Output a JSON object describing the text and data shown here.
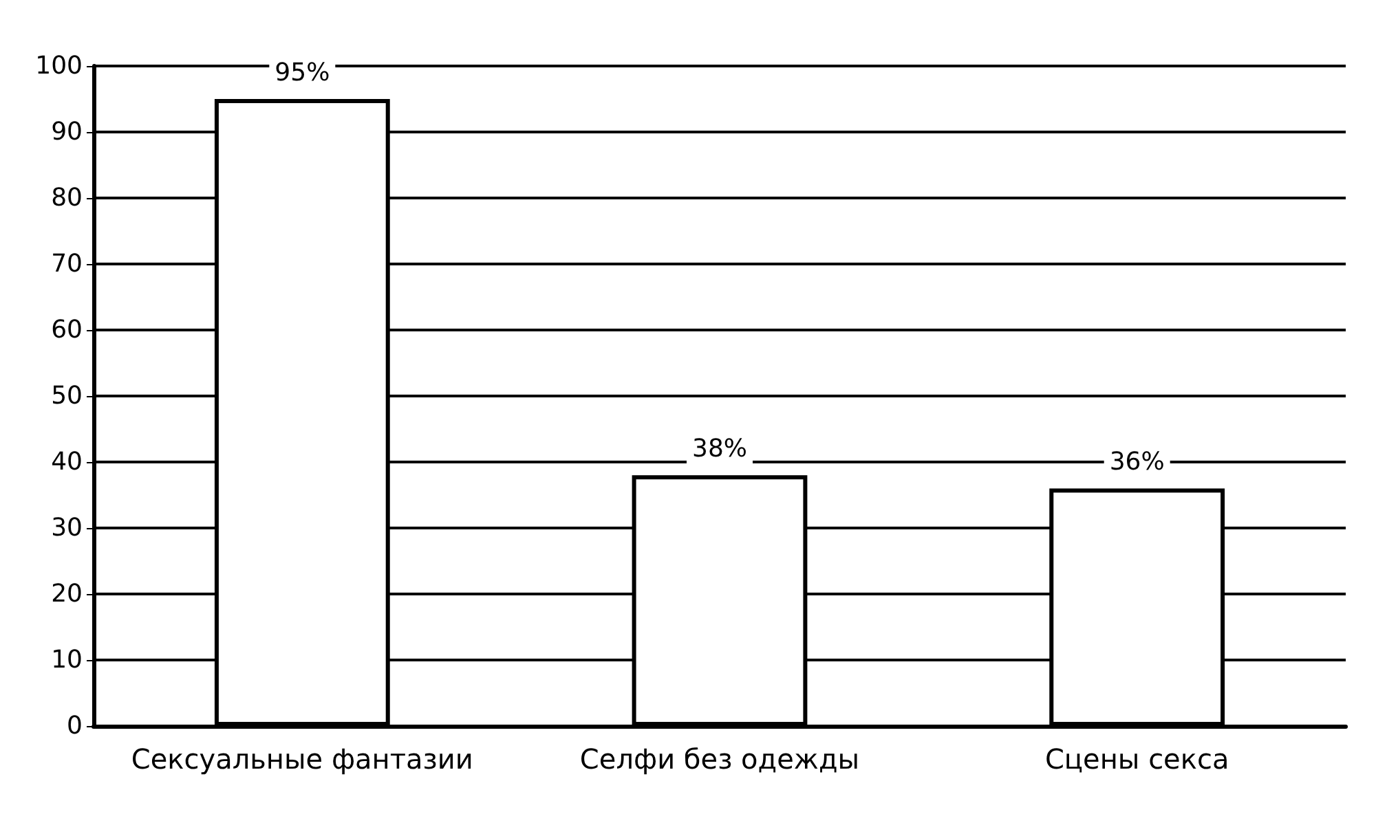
{
  "chart_data": {
    "type": "bar",
    "categories": [
      "Сексуальные фантазии",
      "Селфи без одежды",
      "Сцены секса"
    ],
    "values": [
      95,
      38,
      36
    ],
    "value_labels": [
      "95%",
      "38%",
      "36%"
    ],
    "color": "#ffffff",
    "ylim": [
      0,
      100
    ],
    "yticks": [
      0,
      10,
      20,
      30,
      40,
      50,
      60,
      70,
      80,
      90,
      100
    ],
    "grid": "y"
  }
}
